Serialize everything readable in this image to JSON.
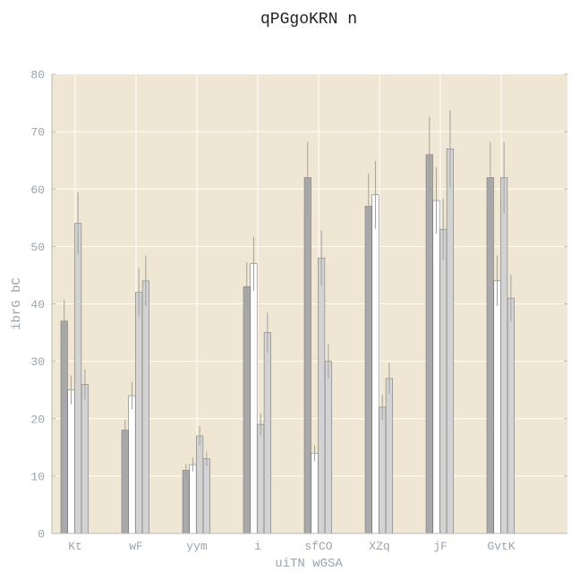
{
  "chart_data": {
    "type": "bar",
    "title": "qPGgoKRN n",
    "xlabel": "uiTN  wGSA",
    "ylabel": "ibrG bC",
    "ylim": [
      0,
      80
    ],
    "yticks": [
      0,
      10,
      20,
      30,
      40,
      50,
      60,
      70,
      80
    ],
    "grid": true,
    "categories": [
      "Kt",
      "wF",
      "yym",
      "i",
      "sfCO",
      "XZq",
      "jF",
      "GvtK"
    ],
    "series": [
      {
        "values": [
          37,
          18,
          11,
          43,
          62,
          57,
          66,
          62
        ],
        "errors": [
          3.7,
          1.8,
          1.1,
          4.3,
          6.2,
          5.7,
          6.6,
          6.2
        ],
        "color": "#a9a9a9"
      },
      {
        "values": [
          25,
          24,
          12,
          47,
          14,
          59,
          58,
          44
        ],
        "errors": [
          2.5,
          2.4,
          1.2,
          4.7,
          1.4,
          5.9,
          5.8,
          4.4
        ],
        "color": "#ffffff"
      },
      {
        "values": [
          54,
          42,
          17,
          19,
          48,
          22,
          53,
          62
        ],
        "errors": [
          5.4,
          4.2,
          1.7,
          1.9,
          4.8,
          2.2,
          5.3,
          6.2
        ],
        "color": "#d3d3d3"
      },
      {
        "values": [
          26,
          44,
          13,
          35,
          30,
          27,
          67,
          41
        ],
        "errors": [
          2.6,
          4.4,
          1.3,
          3.5,
          3.0,
          2.7,
          6.7,
          4.1
        ],
        "color": "#d3d3d3"
      }
    ],
    "background": "#efe7d4",
    "grid_color": "#ffffff",
    "error_color": "#a0a0a0"
  }
}
